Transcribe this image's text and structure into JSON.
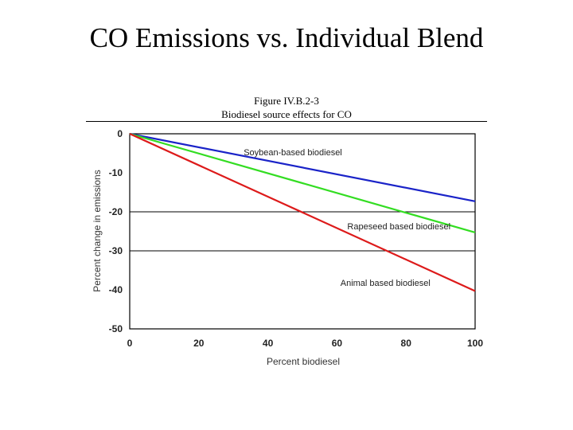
{
  "slide": {
    "title": "CO Emissions vs. Individual Blend"
  },
  "figure": {
    "caption_line1": "Figure IV.B.2-3",
    "caption_line2": "Biodiesel source effects for CO"
  },
  "chart_data": {
    "type": "line",
    "title": "Biodiesel source effects for CO",
    "xlabel": "Percent biodiesel",
    "ylabel": "Percent change in emissions",
    "xlim": [
      0,
      100
    ],
    "ylim": [
      -50,
      0
    ],
    "xticks": [
      0,
      20,
      40,
      60,
      80,
      100
    ],
    "yticks": [
      0,
      -10,
      -20,
      -30,
      -40,
      -50
    ],
    "grid": "horizontal at -20 and -30",
    "series": [
      {
        "name": "Soybean-based biodiesel",
        "color": "#1a23c8",
        "x": [
          0,
          100
        ],
        "y": [
          0,
          -17.3
        ]
      },
      {
        "name": "Rapeseed based biodiesel",
        "color": "#33dd22",
        "x": [
          0,
          100
        ],
        "y": [
          0,
          -25.3
        ]
      },
      {
        "name": "Animal based biodiesel",
        "color": "#dd1a1a",
        "x": [
          0,
          100
        ],
        "y": [
          0,
          -40.3
        ]
      }
    ]
  }
}
